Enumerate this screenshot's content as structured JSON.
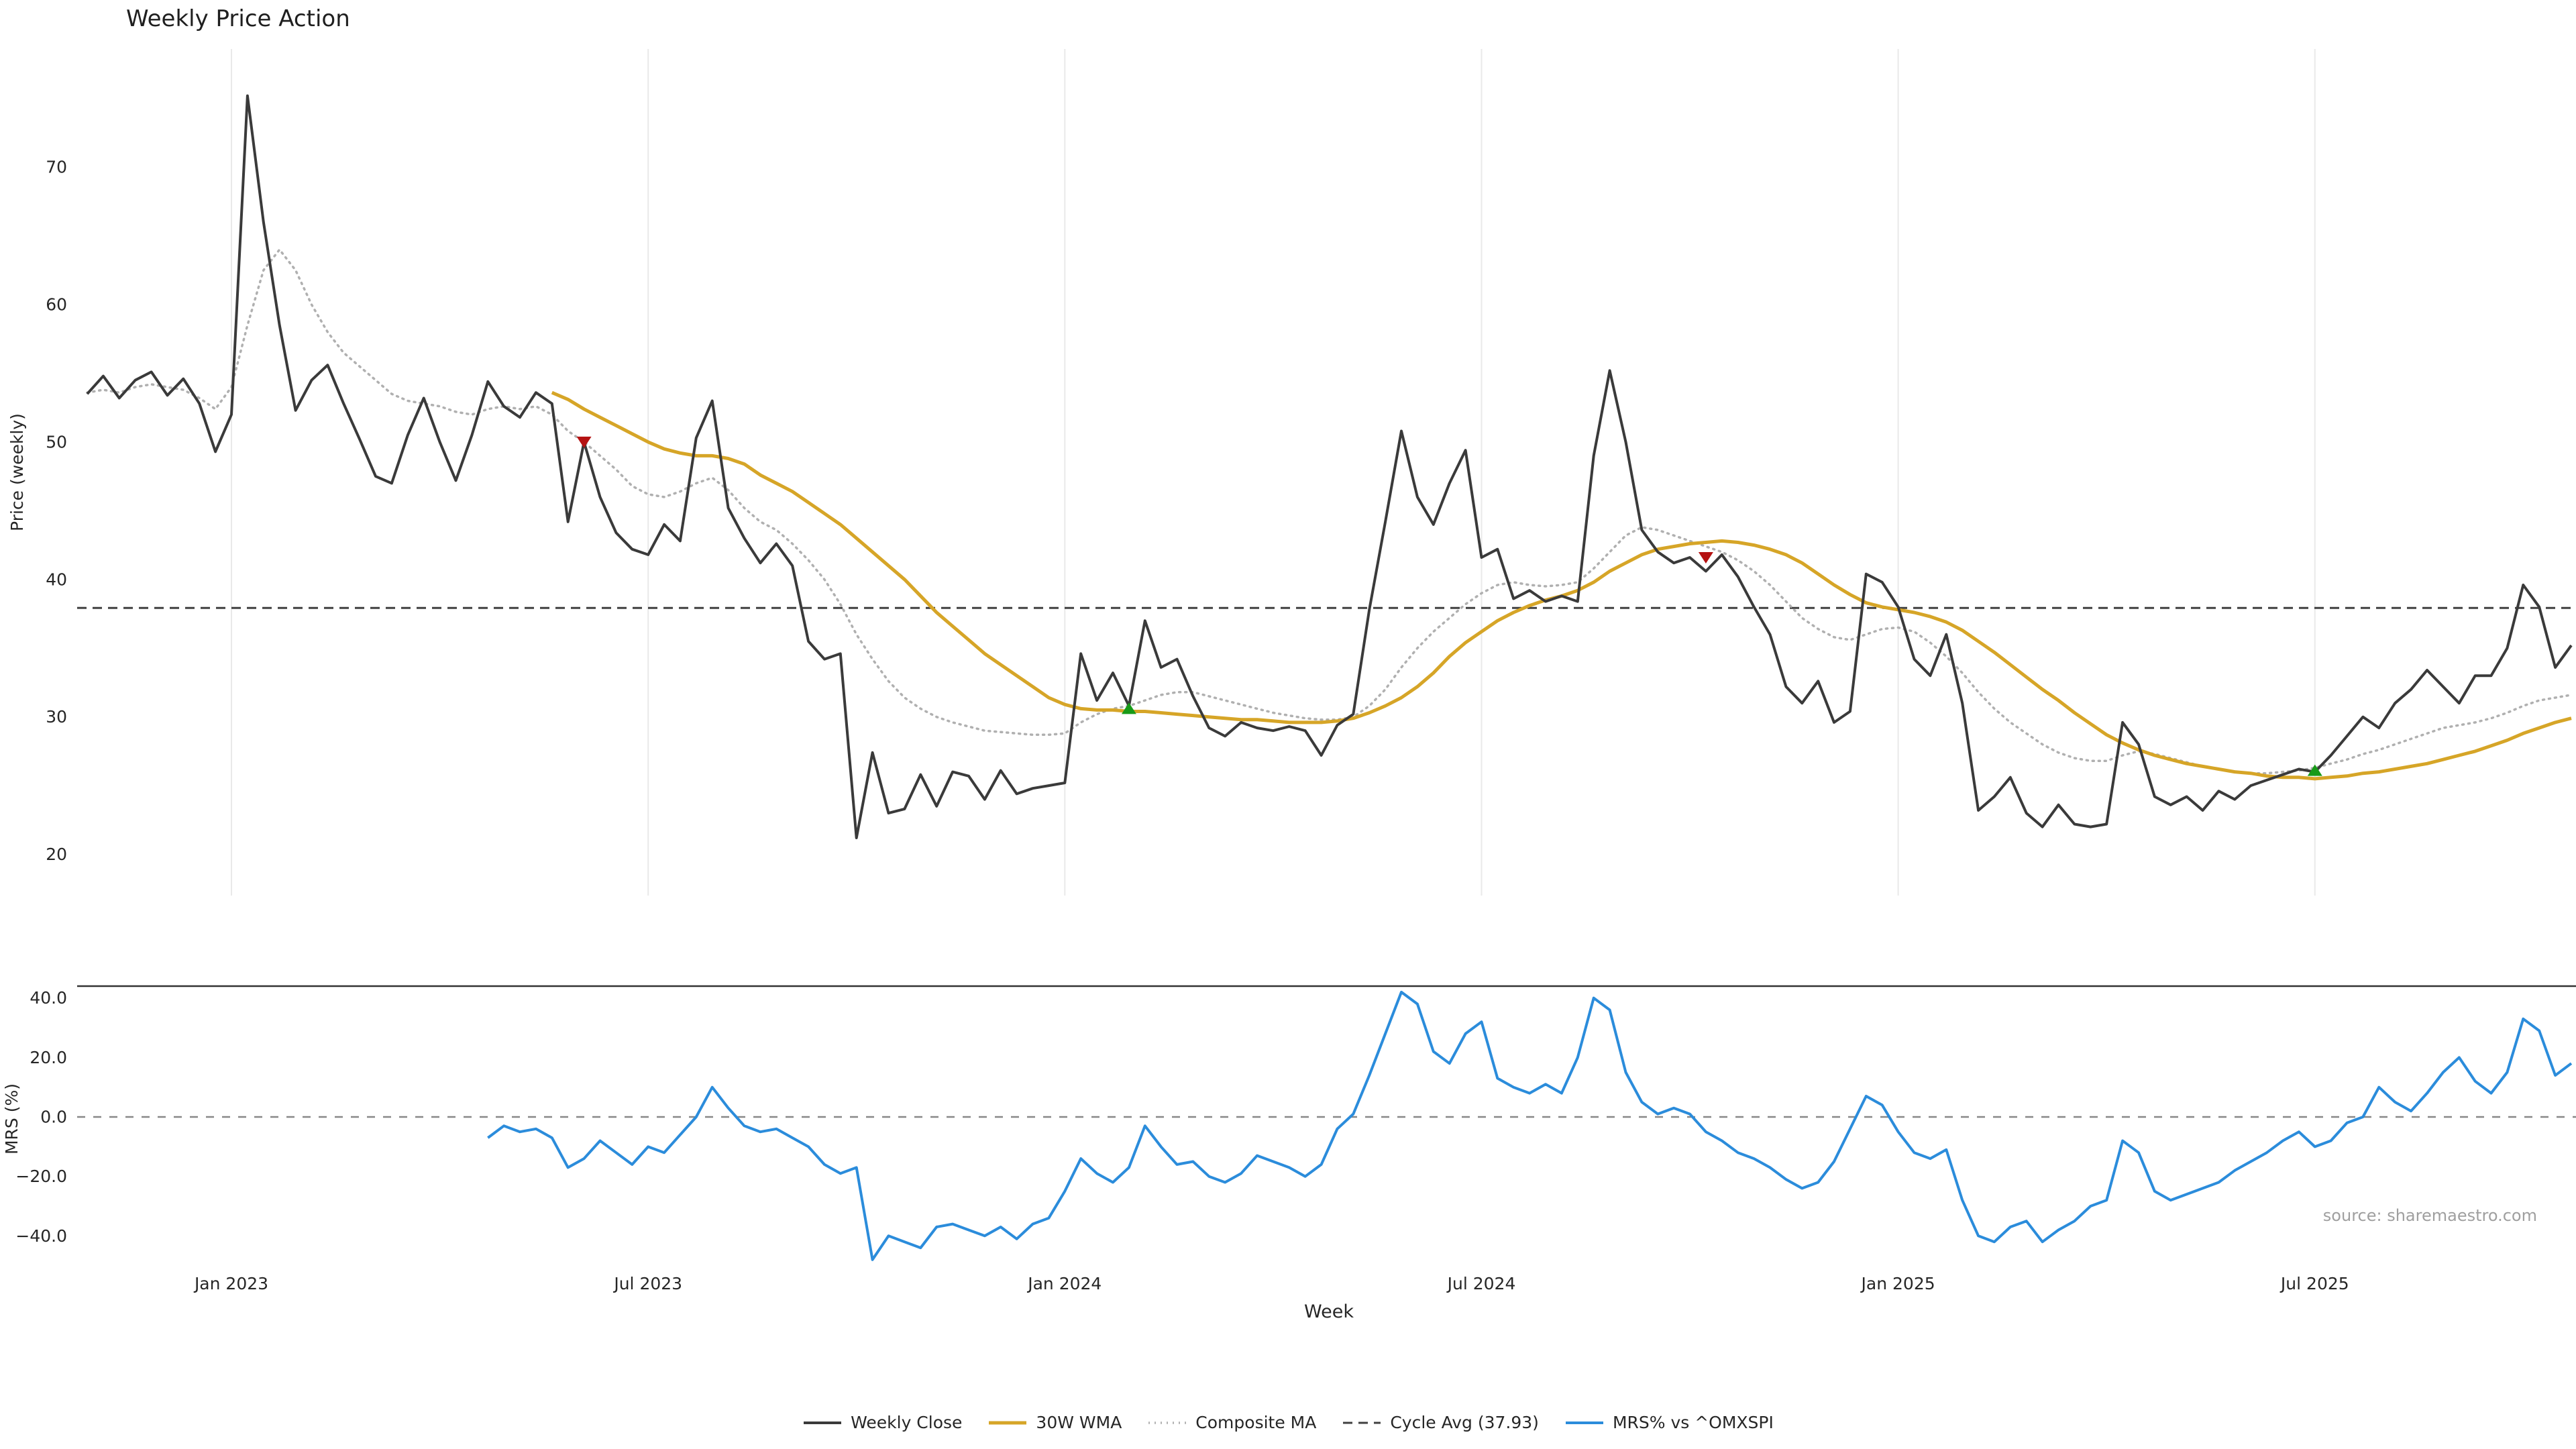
{
  "title": "Weekly Price Action",
  "source_note": "source: sharemaestro.com",
  "colors": {
    "close": "#3a3a3a",
    "wma": "#d6a527",
    "composite": "#b0b0b0",
    "cycle": "#404040",
    "mrs": "#2b8cdb",
    "buy": "#189a18",
    "sell": "#b51212",
    "grid": "#e9e9e9",
    "spine": "#333333",
    "zero": "#888888",
    "text": "#262626",
    "muted_text": "#9f9f9f"
  },
  "legend": {
    "items": [
      {
        "label": "Weekly Close",
        "color": "#3a3a3a",
        "dash": "",
        "width": 4
      },
      {
        "label": "30W WMA",
        "color": "#d6a527",
        "dash": "",
        "width": 5
      },
      {
        "label": "Composite MA",
        "color": "#b0b0b0",
        "dash": "2 7",
        "width": 3.5
      },
      {
        "label": "Cycle Avg (37.93)",
        "color": "#404040",
        "dash": "14 9",
        "width": 3
      },
      {
        "label": "MRS% vs ^OMXSPI",
        "color": "#2b8cdb",
        "dash": "",
        "width": 4
      }
    ]
  },
  "chart_data": {
    "type": "line",
    "title": "Weekly Price Action",
    "xlabel": "Week",
    "n_weeks": 156,
    "x_axis": {
      "tick_indices": [
        9,
        35,
        61,
        87,
        113,
        139
      ],
      "tick_labels": [
        "Jan 2023",
        "Jul 2023",
        "Jan 2024",
        "Jul 2024",
        "Jan 2025",
        "Jul 2025"
      ]
    },
    "panels": [
      {
        "name": "price",
        "ylabel": "Price (weekly)",
        "ylim": [
          17.0,
          78.6
        ],
        "yticks": [
          20,
          30,
          40,
          50,
          60,
          70
        ],
        "ytick_labels": [
          "20",
          "30",
          "40",
          "50",
          "60",
          "70"
        ],
        "cycle_avg": 37.93,
        "series": [
          {
            "name": "Weekly Close",
            "values": [
              53.5,
              54.8,
              53.2,
              54.5,
              55.1,
              53.4,
              54.6,
              52.8,
              49.3,
              52.0,
              75.2,
              66.0,
              58.5,
              52.3,
              54.5,
              55.6,
              52.8,
              50.2,
              47.5,
              47.0,
              50.5,
              53.2,
              50.0,
              47.2,
              50.5,
              54.4,
              52.6,
              51.8,
              53.6,
              52.8,
              44.2,
              50.0,
              46.0,
              43.4,
              42.2,
              41.8,
              44.0,
              42.8,
              50.3,
              53.0,
              45.2,
              43.0,
              41.2,
              42.6,
              41.0,
              35.5,
              34.2,
              34.6,
              21.2,
              27.4,
              23.0,
              23.3,
              25.8,
              23.5,
              26.0,
              25.7,
              24.0,
              26.1,
              24.4,
              24.8,
              25.0,
              25.2,
              34.6,
              31.2,
              33.2,
              30.8,
              37.0,
              33.6,
              34.2,
              31.5,
              29.2,
              28.6,
              29.6,
              29.2,
              29.0,
              29.3,
              29.0,
              27.2,
              29.4,
              30.2,
              37.8,
              44.2,
              50.8,
              46.0,
              44.0,
              47.0,
              49.4,
              41.6,
              42.2,
              38.6,
              39.2,
              38.4,
              38.8,
              38.4,
              49.0,
              55.2,
              50.0,
              43.6,
              42.0,
              41.2,
              41.6,
              40.6,
              41.8,
              40.2,
              38.0,
              36.0,
              32.2,
              31.0,
              32.6,
              29.6,
              30.4,
              40.4,
              39.8,
              38.0,
              34.2,
              33.0,
              36.0,
              31.0,
              23.2,
              24.2,
              25.6,
              23.0,
              22.0,
              23.6,
              22.2,
              22.0,
              22.2,
              29.6,
              28.0,
              24.2,
              23.6,
              24.2,
              23.2,
              24.6,
              24.0,
              25.0,
              25.4,
              25.8,
              26.2,
              26.0,
              27.2,
              28.6,
              30.0,
              29.2,
              31.0,
              32.0,
              33.4,
              32.2,
              31.0,
              33.0,
              33.0,
              35.0,
              39.6,
              38.0,
              33.6,
              35.2
            ]
          },
          {
            "name": "30W WMA",
            "values": [
              null,
              null,
              null,
              null,
              null,
              null,
              null,
              null,
              null,
              null,
              null,
              null,
              null,
              null,
              null,
              null,
              null,
              null,
              null,
              null,
              null,
              null,
              null,
              null,
              null,
              null,
              null,
              null,
              null,
              53.6,
              53.1,
              52.4,
              51.8,
              51.2,
              50.6,
              50.0,
              49.5,
              49.2,
              49.0,
              49.0,
              48.8,
              48.4,
              47.6,
              47.0,
              46.4,
              45.6,
              44.8,
              44.0,
              43.0,
              42.0,
              41.0,
              40.0,
              38.8,
              37.6,
              36.6,
              35.6,
              34.6,
              33.8,
              33.0,
              32.2,
              31.4,
              30.9,
              30.6,
              30.5,
              30.5,
              30.4,
              30.4,
              30.3,
              30.2,
              30.1,
              30.0,
              29.9,
              29.8,
              29.8,
              29.7,
              29.6,
              29.6,
              29.6,
              29.7,
              29.9,
              30.3,
              30.8,
              31.4,
              32.2,
              33.2,
              34.4,
              35.4,
              36.2,
              37.0,
              37.6,
              38.1,
              38.5,
              38.8,
              39.2,
              39.8,
              40.6,
              41.2,
              41.8,
              42.2,
              42.4,
              42.6,
              42.7,
              42.8,
              42.7,
              42.5,
              42.2,
              41.8,
              41.2,
              40.4,
              39.6,
              38.9,
              38.3,
              38.0,
              37.8,
              37.6,
              37.3,
              36.9,
              36.3,
              35.5,
              34.7,
              33.8,
              32.9,
              32.0,
              31.2,
              30.3,
              29.5,
              28.7,
              28.1,
              27.6,
              27.2,
              26.9,
              26.6,
              26.4,
              26.2,
              26.0,
              25.9,
              25.7,
              25.6,
              25.6,
              25.5,
              25.6,
              25.7,
              25.9,
              26.0,
              26.2,
              26.4,
              26.6,
              26.9,
              27.2,
              27.5,
              27.9,
              28.3,
              28.8,
              29.2,
              29.6,
              29.9
            ]
          },
          {
            "name": "Composite MA",
            "values": [
              53.6,
              53.8,
              53.6,
              54.0,
              54.2,
              54.0,
              53.8,
              53.2,
              52.4,
              54.0,
              58.5,
              62.5,
              64.0,
              62.5,
              60.0,
              58.0,
              56.5,
              55.5,
              54.5,
              53.5,
              53.0,
              52.8,
              52.6,
              52.2,
              52.0,
              52.4,
              52.6,
              52.4,
              52.6,
              52.0,
              50.8,
              50.0,
              49.0,
              48.0,
              46.8,
              46.2,
              46.0,
              46.4,
              47.0,
              47.4,
              46.5,
              45.2,
              44.2,
              43.6,
              42.6,
              41.4,
              40.0,
              38.2,
              36.0,
              34.2,
              32.6,
              31.4,
              30.6,
              30.0,
              29.6,
              29.3,
              29.0,
              28.9,
              28.8,
              28.7,
              28.7,
              28.8,
              29.6,
              30.2,
              30.6,
              30.8,
              31.2,
              31.6,
              31.8,
              31.8,
              31.5,
              31.2,
              30.9,
              30.6,
              30.3,
              30.1,
              29.9,
              29.8,
              29.8,
              30.0,
              30.8,
              32.0,
              33.6,
              35.0,
              36.2,
              37.2,
              38.2,
              39.0,
              39.6,
              39.8,
              39.6,
              39.5,
              39.6,
              39.8,
              40.8,
              42.0,
              43.2,
              43.8,
              43.6,
              43.2,
              42.8,
              42.4,
              42.0,
              41.4,
              40.6,
              39.6,
              38.4,
              37.2,
              36.4,
              35.8,
              35.6,
              36.0,
              36.4,
              36.5,
              36.2,
              35.4,
              34.4,
              33.2,
              31.8,
              30.6,
              29.6,
              28.8,
              28.0,
              27.4,
              27.0,
              26.8,
              26.8,
              27.2,
              27.5,
              27.3,
              27.0,
              26.7,
              26.4,
              26.2,
              26.0,
              25.9,
              25.9,
              26.0,
              26.1,
              26.3,
              26.6,
              26.9,
              27.3,
              27.6,
              28.0,
              28.4,
              28.8,
              29.2,
              29.4,
              29.6,
              29.9,
              30.3,
              30.8,
              31.2,
              31.4,
              31.6
            ]
          }
        ],
        "markers": [
          {
            "type": "sell",
            "week": 31,
            "value": 50.0
          },
          {
            "type": "sell",
            "week": 101,
            "value": 41.6
          },
          {
            "type": "buy",
            "week": 65,
            "value": 30.6
          },
          {
            "type": "buy",
            "week": 139,
            "value": 26.1
          }
        ]
      },
      {
        "name": "mrs",
        "ylabel": "MRS (%)",
        "ylim": [
          -48.5,
          44.0
        ],
        "yticks": [
          40,
          20,
          0,
          -20,
          -40
        ],
        "ytick_labels": [
          "40.0",
          "20.0",
          "0.0",
          "−20.0",
          "−40.0"
        ],
        "zero_line": 0,
        "series": [
          {
            "name": "MRS% vs ^OMXSPI",
            "values": [
              null,
              null,
              null,
              null,
              null,
              null,
              null,
              null,
              null,
              null,
              null,
              null,
              null,
              null,
              null,
              null,
              null,
              null,
              null,
              null,
              null,
              null,
              null,
              null,
              null,
              -7,
              -3,
              -5,
              -4,
              -7,
              -17,
              -14,
              -8,
              -12,
              -16,
              -10,
              -12,
              -6,
              0,
              10,
              3,
              -3,
              -5,
              -4,
              -7,
              -10,
              -16,
              -19,
              -17,
              -48,
              -40,
              -42,
              -44,
              -37,
              -36,
              -38,
              -40,
              -37,
              -41,
              -36,
              -34,
              -25,
              -14,
              -19,
              -22,
              -17,
              -3,
              -10,
              -16,
              -15,
              -20,
              -22,
              -19,
              -13,
              -15,
              -17,
              -20,
              -16,
              -4,
              1,
              14,
              28,
              42,
              38,
              22,
              18,
              28,
              32,
              13,
              10,
              8,
              11,
              8,
              20,
              40,
              36,
              15,
              5,
              1,
              3,
              1,
              -5,
              -8,
              -12,
              -14,
              -17,
              -21,
              -24,
              -22,
              -15,
              -4,
              7,
              4,
              -5,
              -12,
              -14,
              -11,
              -28,
              -40,
              -42,
              -37,
              -35,
              -42,
              -38,
              -35,
              -30,
              -28,
              -8,
              -12,
              -25,
              -28,
              -26,
              -24,
              -22,
              -18,
              -15,
              -12,
              -8,
              -5,
              -10,
              -8,
              -2,
              0,
              10,
              5,
              2,
              8,
              15,
              20,
              12,
              8,
              15,
              33,
              29,
              14,
              18
            ]
          }
        ]
      }
    ]
  }
}
